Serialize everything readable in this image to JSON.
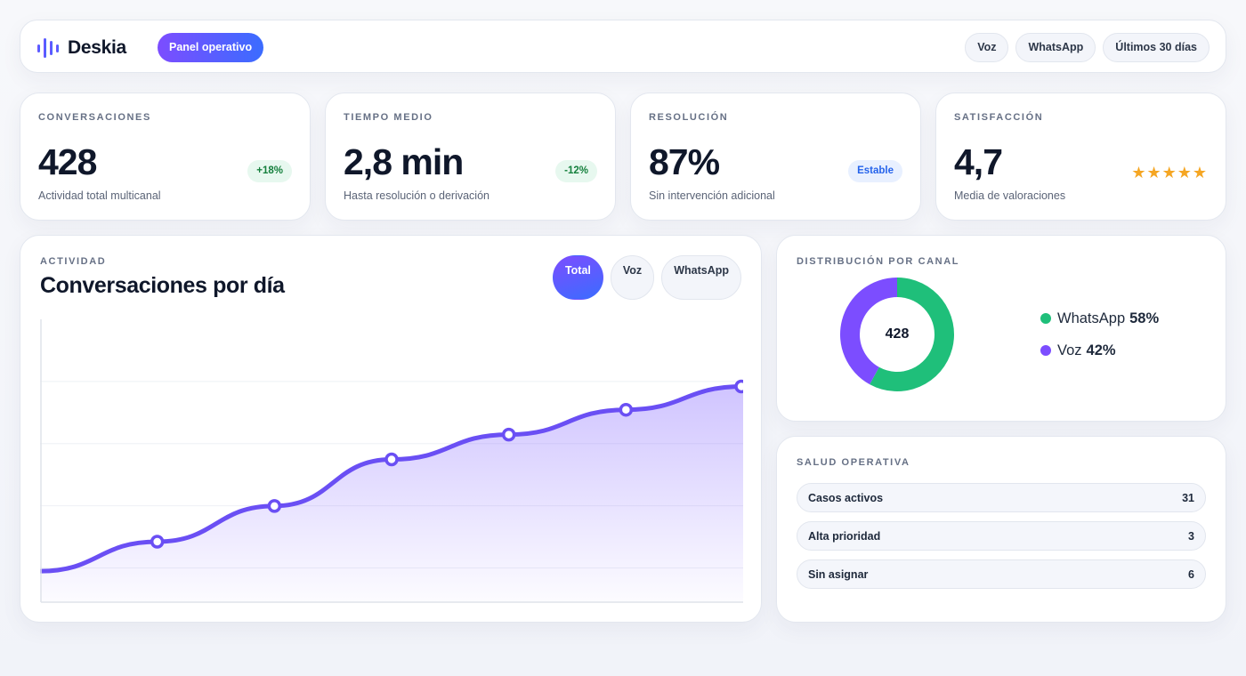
{
  "header": {
    "brand": "Deskia",
    "mode": "Panel operativo",
    "filters": [
      {
        "label": "Voz"
      },
      {
        "label": "WhatsApp"
      },
      {
        "label": "Últimos 30 días"
      }
    ]
  },
  "kpis": [
    {
      "label": "CONVERSACIONES",
      "value": "428",
      "caption": "Actividad total multicanal",
      "badge": "+18%"
    },
    {
      "label": "TIEMPO MEDIO",
      "value": "2,8 min",
      "caption": "Hasta resolución o derivación",
      "badge": "-12%"
    },
    {
      "label": "RESOLUCIÓN",
      "value": "87%",
      "caption": "Sin intervención adicional",
      "badge": "Estable"
    },
    {
      "label": "SATISFACCIÓN",
      "value": "4,7",
      "caption": "Media de valoraciones",
      "stars": "★★★★★",
      "rating": 5
    }
  ],
  "activity": {
    "label": "ACTIVIDAD",
    "title": "Conversaciones por día",
    "tabs": [
      {
        "label": "Total",
        "active": true
      },
      {
        "label": "Voz",
        "active": false
      },
      {
        "label": "WhatsApp",
        "active": false
      }
    ]
  },
  "chart_data": {
    "type": "area",
    "title": "Conversaciones por día",
    "series": [
      {
        "values": [
          20,
          39,
          62,
          92,
          108,
          124,
          139
        ]
      }
    ],
    "marked_points": [
      1,
      2,
      3,
      4,
      5,
      6
    ],
    "ylim": [
      0,
      180
    ],
    "grid": true,
    "color": "#6a4ff4"
  },
  "distribution": {
    "label": "DISTRIBUCIÓN POR CANAL",
    "center": "428",
    "channels": [
      {
        "name": "WhatsApp",
        "pct_label": "58%",
        "value": 58,
        "color": "#1fbf7a"
      },
      {
        "name": "Voz",
        "pct_label": "42%",
        "value": 42,
        "color": "#7c4dff"
      }
    ]
  },
  "health": {
    "label": "SALUD OPERATIVA",
    "rows": [
      {
        "label": "Casos activos",
        "value": "31"
      },
      {
        "label": "Alta prioridad",
        "value": "3"
      },
      {
        "label": "Sin asignar",
        "value": "6"
      }
    ]
  }
}
